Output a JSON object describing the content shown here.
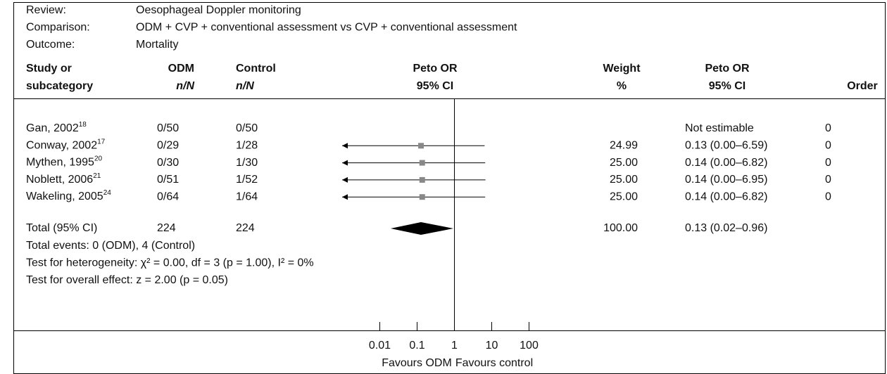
{
  "chart_data": {
    "type": "forest",
    "header": [
      {
        "label": "Review:",
        "value": "Oesophageal Doppler monitoring"
      },
      {
        "label": "Comparison:",
        "value": "ODM + CVP + conventional assessment vs CVP + conventional assessment"
      },
      {
        "label": "Outcome:",
        "value": "Mortality"
      }
    ],
    "columns": {
      "study": [
        "Study or",
        "subcategory"
      ],
      "odm": [
        "ODM",
        "n/N"
      ],
      "control": [
        "Control",
        "n/N"
      ],
      "plot": [
        "Peto OR",
        "95% CI"
      ],
      "weight": [
        "Weight",
        "%"
      ],
      "ci": [
        "Peto OR",
        "95% CI"
      ],
      "order": [
        "Order"
      ]
    },
    "studies": [
      {
        "name": "Gan, 2002",
        "ref": "18",
        "odm": "0/50",
        "control": "0/50",
        "or": null,
        "lower": null,
        "upper": null,
        "weight": null,
        "ci_label": "Not estimable",
        "order": 0
      },
      {
        "name": "Conway, 2002",
        "ref": "17",
        "odm": "0/29",
        "control": "1/28",
        "or": 0.13,
        "lower": 0,
        "upper": 6.59,
        "weight": "24.99",
        "ci_label": "0.13 (0.00–6.59)",
        "order": 0
      },
      {
        "name": "Mythen, 1995",
        "ref": "20",
        "odm": "0/30",
        "control": "1/30",
        "or": 0.14,
        "lower": 0,
        "upper": 6.82,
        "weight": "25.00",
        "ci_label": "0.14 (0.00–6.82)",
        "order": 0
      },
      {
        "name": "Noblett, 2006",
        "ref": "21",
        "odm": "0/51",
        "control": "1/52",
        "or": 0.14,
        "lower": 0,
        "upper": 6.95,
        "weight": "25.00",
        "ci_label": "0.14 (0.00–6.95)",
        "order": 0
      },
      {
        "name": "Wakeling, 2005",
        "ref": "24",
        "odm": "0/64",
        "control": "1/64",
        "or": 0.14,
        "lower": 0,
        "upper": 6.82,
        "weight": "25.00",
        "ci_label": "0.14 (0.00–6.82)",
        "order": 0
      }
    ],
    "total": {
      "name": "Total (95% CI)",
      "odm": 224,
      "control": 224,
      "or": 0.13,
      "lower": 0.02,
      "upper": 0.96,
      "weight": "100.00",
      "ci_label": "0.13 (0.02–0.96)"
    },
    "notes": [
      "Total events: 0 (ODM), 4 (Control)",
      "Test for heterogeneity: χ² = 0.00, df = 3 (p = 1.00), I² = 0%",
      "Test for overall effect: z = 2.00 (p = 0.05)"
    ],
    "log_x": true,
    "xlim": [
      0.001,
      1000
    ],
    "xticks": [
      0.01,
      0.1,
      1,
      10,
      100
    ],
    "favours": [
      "Favours ODM",
      "Favours control"
    ],
    "color": "#888888"
  }
}
